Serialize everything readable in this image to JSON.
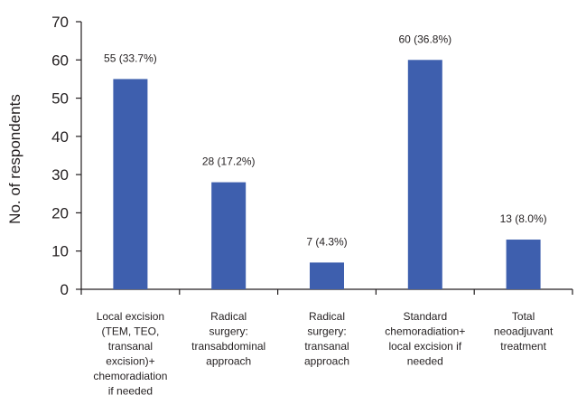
{
  "chart_data": {
    "type": "bar",
    "title": "",
    "xlabel": "",
    "ylabel": "No. of respondents",
    "ylim": [
      0,
      70
    ],
    "yticks": [
      0,
      10,
      20,
      30,
      40,
      50,
      60,
      70
    ],
    "grid": false,
    "bar_color": "#3e5fae",
    "categories": [
      "Local excision (TEM, TEO, transanal excision)+ chemoradiation if needed",
      "Radical surgery: transabdominal approach",
      "Radical surgery: transanal approach",
      "Standard chemoradiation+ local excision if needed",
      "Total neoadjuvant treatment"
    ],
    "category_lines": [
      [
        "Local excision",
        "(TEM, TEO,",
        "transanal",
        "excision)+",
        "chemoradiation",
        "if needed"
      ],
      [
        "Radical",
        "surgery:",
        "transabdominal",
        "approach"
      ],
      [
        "Radical",
        "surgery:",
        "transanal",
        "approach"
      ],
      [
        "Standard",
        "chemoradiation+",
        "local excision if",
        "needed"
      ],
      [
        "Total",
        "neoadjuvant",
        "treatment"
      ]
    ],
    "values": [
      55,
      28,
      7,
      60,
      13
    ],
    "data_labels": [
      "55 (33.7%)",
      "28 (17.2%)",
      "7 (4.3%)",
      "60 (36.8%)",
      "13 (8.0%)"
    ]
  }
}
